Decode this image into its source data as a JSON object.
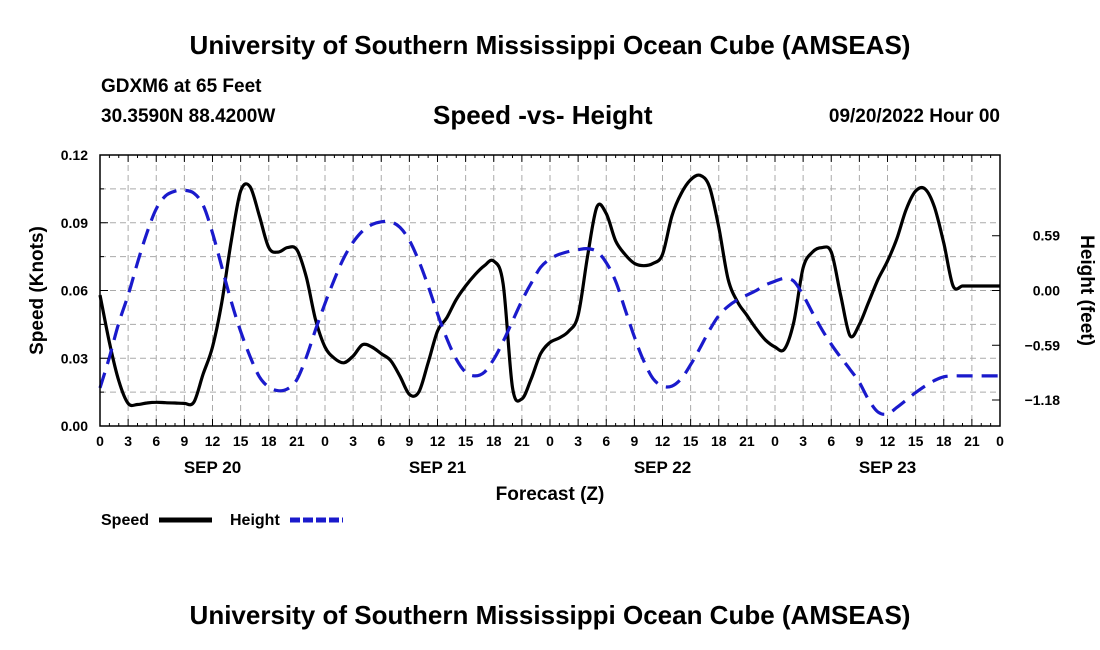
{
  "header": {
    "title": "University of Southern Mississippi Ocean Cube (AMSEAS)",
    "station": "GDXM6 at 65 Feet",
    "coords": "30.3590N  88.4200W",
    "subtitle": "Speed -vs- Height",
    "datetime": "09/20/2022 Hour 00"
  },
  "footer": {
    "title": "University of Southern Mississippi Ocean Cube (AMSEAS)"
  },
  "chart_data": {
    "type": "line",
    "title": "Speed -vs- Height",
    "xlabel": "Forecast (Z)",
    "ylabel": "Speed (Knots)",
    "y2label": "Height (feet)",
    "xlim": [
      0,
      96
    ],
    "ylim": [
      0,
      0.12
    ],
    "y2lim": [
      -1.46,
      1.46
    ],
    "grid": true,
    "x_tick_labels": [
      "0",
      "3",
      "6",
      "9",
      "12",
      "15",
      "18",
      "21",
      "0",
      "3",
      "6",
      "9",
      "12",
      "15",
      "18",
      "21",
      "0",
      "3",
      "6",
      "9",
      "12",
      "15",
      "18",
      "21",
      "0",
      "3",
      "6",
      "9",
      "12",
      "15",
      "18",
      "21",
      "0"
    ],
    "date_labels": [
      {
        "x": 12,
        "label": "SEP 20"
      },
      {
        "x": 36,
        "label": "SEP 21"
      },
      {
        "x": 60,
        "label": "SEP 22"
      },
      {
        "x": 84,
        "label": "SEP 23"
      }
    ],
    "y_ticks": [
      "0.00",
      "0.03",
      "0.06",
      "0.09",
      "0.12"
    ],
    "y_tick_values": [
      0,
      0.03,
      0.06,
      0.09,
      0.12
    ],
    "y2_ticks": [
      "0.59",
      "0.00",
      "−0.59",
      "−1.18"
    ],
    "y2_tick_values": [
      0.59,
      0,
      -0.59,
      -1.18
    ],
    "legend": [
      {
        "name": "Speed",
        "color": "#000000",
        "style": "solid"
      },
      {
        "name": "Height",
        "color": "#1a1acc",
        "style": "dashed"
      }
    ],
    "series": [
      {
        "name": "Speed",
        "axis": "left",
        "color": "#000000",
        "x": [
          0,
          1,
          2,
          3,
          4,
          5,
          6,
          7,
          8,
          9,
          10,
          11,
          12,
          13,
          14,
          15,
          16,
          17,
          18,
          19,
          20,
          21,
          22,
          23,
          24,
          25,
          26,
          27,
          28,
          29,
          30,
          31,
          32,
          33,
          34,
          35,
          36,
          37,
          38,
          39,
          40,
          41,
          42,
          43,
          44,
          45,
          46,
          47,
          48,
          49,
          50,
          51,
          52,
          53,
          54,
          55,
          56,
          57,
          58,
          59,
          60,
          61,
          62,
          63,
          64,
          65,
          66,
          67,
          68,
          69,
          70,
          71,
          72,
          73,
          74,
          75,
          76,
          77,
          78,
          79,
          80,
          81,
          82,
          83,
          84,
          85,
          86,
          87,
          88,
          89,
          90,
          91,
          92,
          93,
          94,
          95,
          96
        ],
        "values": [
          0.058,
          0.037,
          0.02,
          0.01,
          0.0095,
          0.0102,
          0.0105,
          0.0103,
          0.0102,
          0.01,
          0.0105,
          0.023,
          0.035,
          0.055,
          0.082,
          0.104,
          0.106,
          0.093,
          0.079,
          0.077,
          0.079,
          0.078,
          0.066,
          0.047,
          0.035,
          0.03,
          0.028,
          0.031,
          0.036,
          0.035,
          0.032,
          0.029,
          0.022,
          0.014,
          0.015,
          0.028,
          0.042,
          0.048,
          0.056,
          0.062,
          0.067,
          0.071,
          0.073,
          0.063,
          0.017,
          0.012,
          0.021,
          0.032,
          0.037,
          0.039,
          0.042,
          0.049,
          0.075,
          0.097,
          0.094,
          0.082,
          0.076,
          0.072,
          0.071,
          0.072,
          0.076,
          0.093,
          0.103,
          0.109,
          0.111,
          0.106,
          0.088,
          0.065,
          0.055,
          0.049,
          0.043,
          0.038,
          0.035,
          0.034,
          0.046,
          0.07,
          0.077,
          0.079,
          0.077,
          0.058,
          0.04,
          0.045,
          0.055,
          0.065,
          0.073,
          0.083,
          0.096,
          0.104,
          0.105,
          0.097,
          0.081,
          0.062,
          0.062,
          0.062,
          0.062,
          0.062,
          0.062
        ]
      },
      {
        "name": "Height",
        "axis": "right",
        "color": "#1a1acc",
        "x": [
          0,
          1,
          2,
          3,
          4,
          5,
          6,
          7,
          8,
          9,
          10,
          11,
          12,
          13,
          14,
          15,
          16,
          17,
          18,
          19,
          20,
          21,
          22,
          23,
          24,
          25,
          26,
          27,
          28,
          29,
          30,
          31,
          32,
          33,
          34,
          35,
          36,
          37,
          38,
          39,
          40,
          41,
          42,
          43,
          44,
          45,
          46,
          47,
          48,
          49,
          50,
          51,
          52,
          53,
          54,
          55,
          56,
          57,
          58,
          59,
          60,
          61,
          62,
          63,
          64,
          65,
          66,
          67,
          68,
          69,
          70,
          71,
          72,
          73,
          74,
          75,
          76,
          77,
          78,
          79,
          80,
          81,
          82,
          83,
          84,
          85,
          86,
          87,
          88,
          89,
          90,
          91,
          92,
          93,
          94,
          95,
          96
        ],
        "values": [
          -1.05,
          -0.72,
          -0.35,
          -0.05,
          0.3,
          0.62,
          0.88,
          1.02,
          1.07,
          1.08,
          1.05,
          0.92,
          0.62,
          0.25,
          -0.12,
          -0.44,
          -0.71,
          -0.93,
          -1.04,
          -1.08,
          -1.06,
          -0.96,
          -0.72,
          -0.42,
          -0.14,
          0.12,
          0.35,
          0.52,
          0.64,
          0.71,
          0.74,
          0.74,
          0.68,
          0.54,
          0.32,
          0.05,
          -0.25,
          -0.52,
          -0.74,
          -0.88,
          -0.92,
          -0.88,
          -0.74,
          -0.55,
          -0.33,
          -0.11,
          0.08,
          0.25,
          0.34,
          0.39,
          0.42,
          0.44,
          0.45,
          0.42,
          0.3,
          0.1,
          -0.2,
          -0.5,
          -0.76,
          -0.95,
          -1.03,
          -1.03,
          -0.95,
          -0.8,
          -0.62,
          -0.43,
          -0.27,
          -0.17,
          -0.1,
          -0.05,
          0.0,
          0.06,
          0.1,
          0.13,
          0.1,
          -0.05,
          -0.24,
          -0.42,
          -0.58,
          -0.72,
          -0.85,
          -0.99,
          -1.18,
          -1.31,
          -1.33,
          -1.26,
          -1.18,
          -1.1,
          -1.03,
          -0.97,
          -0.93,
          -0.92,
          -0.92,
          -0.92,
          -0.92,
          -0.92,
          -0.92
        ]
      }
    ]
  }
}
